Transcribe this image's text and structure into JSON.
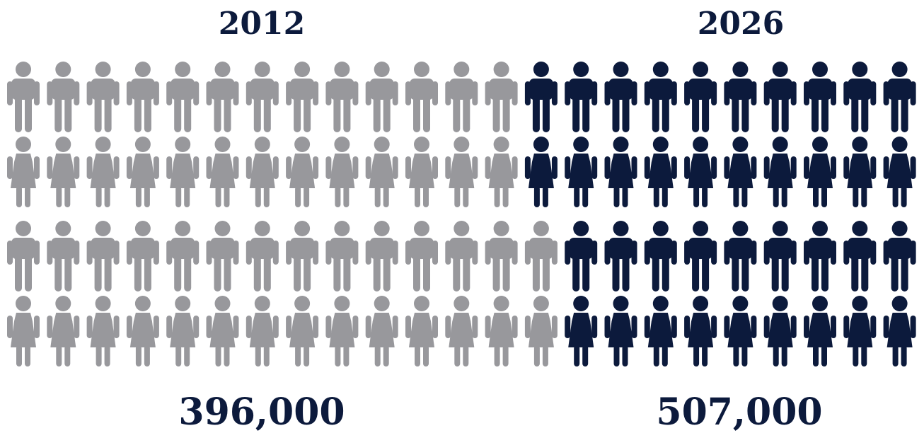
{
  "chart_data": {
    "type": "pictograph",
    "groups": [
      {
        "label": "2012",
        "value": 396000,
        "value_label": "396,000",
        "icon_rows": [
          13,
          13,
          14,
          14
        ]
      },
      {
        "label": "2026",
        "value": 507000,
        "value_label": "507,000",
        "icon_rows": [
          10,
          10,
          9,
          9
        ]
      }
    ],
    "row_icons": [
      "man-icon",
      "woman-icon",
      "man-icon",
      "woman-icon"
    ],
    "colors": {
      "group_0": "#98989c",
      "group_1": "#0c1a3c",
      "text": "#0c1a3c"
    }
  }
}
